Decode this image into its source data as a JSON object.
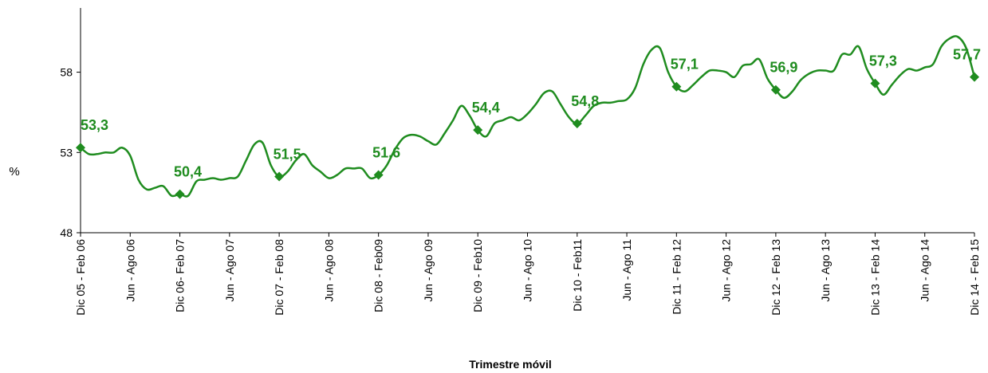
{
  "chart_data": {
    "type": "line",
    "ylabel": "%",
    "xlabel": "Trimestre móvil",
    "ylim": [
      48,
      62
    ],
    "yticks": [
      48,
      53,
      58
    ],
    "grid": false,
    "categories": [
      "Dic 05 - Feb 06",
      null,
      null,
      null,
      null,
      null,
      "Jun - Ago 06",
      null,
      null,
      null,
      null,
      null,
      "Dic  06- Feb 07",
      null,
      null,
      null,
      null,
      null,
      "Jun - Ago 07",
      null,
      null,
      null,
      null,
      null,
      "Dic 07 - Feb 08",
      null,
      null,
      null,
      null,
      null,
      "Jun - Ago 08",
      null,
      null,
      null,
      null,
      null,
      "Dic 08 - Feb09",
      null,
      null,
      null,
      null,
      null,
      "Jun - Ago 09",
      null,
      null,
      null,
      null,
      null,
      "Dic 09 - Feb10",
      null,
      null,
      null,
      null,
      null,
      "Jun - Ago 10",
      null,
      null,
      null,
      null,
      null,
      "Dic 10 - Feb11",
      null,
      null,
      null,
      null,
      null,
      "Jun - Ago 11",
      null,
      null,
      null,
      null,
      null,
      "Dic 11 - Feb 12",
      null,
      null,
      null,
      null,
      null,
      "Jun - Ago 12",
      null,
      null,
      null,
      null,
      null,
      "Dic 12 - Feb 13",
      null,
      null,
      null,
      null,
      null,
      "Jun - Ago 13",
      null,
      null,
      null,
      null,
      null,
      "Dic 13 - Feb 14",
      null,
      null,
      null,
      null,
      null,
      "Jun - Ago 14",
      null,
      null,
      null,
      null,
      null,
      "Dic 14 - Feb 15"
    ],
    "series": [
      {
        "color": "#1f8c1f",
        "values": [
          53.3,
          52.9,
          52.9,
          53.0,
          53.0,
          53.3,
          52.8,
          51.3,
          50.7,
          50.8,
          50.9,
          50.3,
          50.4,
          50.3,
          51.2,
          51.3,
          51.4,
          51.3,
          51.4,
          51.5,
          52.5,
          53.5,
          53.6,
          52.2,
          51.5,
          51.8,
          52.5,
          52.9,
          52.2,
          51.8,
          51.4,
          51.6,
          52.0,
          52.0,
          52.0,
          51.4,
          51.6,
          52.2,
          53.2,
          53.9,
          54.1,
          54.0,
          53.7,
          53.5,
          54.2,
          55.0,
          55.9,
          55.3,
          54.4,
          54.0,
          54.8,
          55.0,
          55.2,
          55.0,
          55.4,
          56.0,
          56.7,
          56.8,
          56.0,
          55.2,
          54.8,
          55.3,
          55.9,
          56.1,
          56.1,
          56.2,
          56.3,
          57.0,
          58.5,
          59.4,
          59.5,
          58.0,
          57.1,
          56.8,
          57.2,
          57.7,
          58.1,
          58.1,
          58.0,
          57.7,
          58.4,
          58.5,
          58.8,
          57.6,
          56.9,
          56.4,
          56.8,
          57.5,
          57.9,
          58.1,
          58.1,
          58.1,
          59.1,
          59.1,
          59.6,
          58.2,
          57.3,
          56.6,
          57.2,
          57.8,
          58.2,
          58.1,
          58.3,
          58.5,
          59.6,
          60.1,
          60.2,
          59.5,
          57.7
        ],
        "value_labels": [
          "53,3",
          null,
          null,
          null,
          null,
          null,
          null,
          null,
          null,
          null,
          null,
          null,
          "50,4",
          null,
          null,
          null,
          null,
          null,
          null,
          null,
          null,
          null,
          null,
          null,
          "51,5",
          null,
          null,
          null,
          null,
          null,
          null,
          null,
          null,
          null,
          null,
          null,
          "51,6",
          null,
          null,
          null,
          null,
          null,
          null,
          null,
          null,
          null,
          null,
          null,
          "54,4",
          null,
          null,
          null,
          null,
          null,
          null,
          null,
          null,
          null,
          null,
          null,
          "54,8",
          null,
          null,
          null,
          null,
          null,
          null,
          null,
          null,
          null,
          null,
          null,
          "57,1",
          null,
          null,
          null,
          null,
          null,
          null,
          null,
          null,
          null,
          null,
          null,
          "56,9",
          null,
          null,
          null,
          null,
          null,
          null,
          null,
          null,
          null,
          null,
          null,
          "57,3",
          null,
          null,
          null,
          null,
          null,
          null,
          null,
          null,
          null,
          null,
          null,
          "57,7"
        ]
      }
    ]
  }
}
